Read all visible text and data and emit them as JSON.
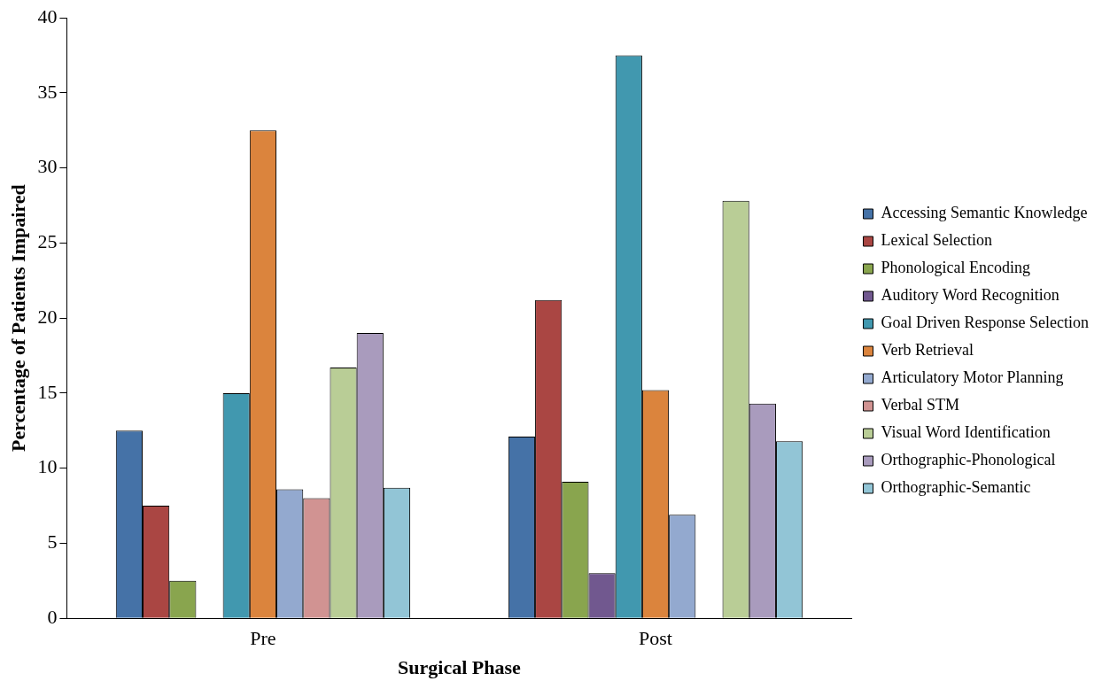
{
  "chart_data": {
    "type": "bar",
    "xlabel": "Surgical Phase",
    "ylabel": "Percentage of Patients Impaired",
    "categories": [
      "Pre",
      "Post"
    ],
    "series": [
      {
        "name": "Accessing Semantic Knowledge",
        "color": "#4572a7",
        "values": [
          12.5,
          12.1
        ]
      },
      {
        "name": "Lexical Selection",
        "color": "#aa4643",
        "values": [
          7.5,
          21.2
        ]
      },
      {
        "name": "Phonological Encoding",
        "color": "#89a54e",
        "values": [
          2.5,
          9.1
        ]
      },
      {
        "name": "Auditory Word Recognition",
        "color": "#71588f",
        "values": [
          0,
          3.0
        ]
      },
      {
        "name": "Goal Driven Response Selection",
        "color": "#4198af",
        "values": [
          15,
          37.5
        ]
      },
      {
        "name": "Verb Retrieval",
        "color": "#db843d",
        "values": [
          32.5,
          15.2
        ]
      },
      {
        "name": "Articulatory Motor Planning",
        "color": "#93a9cf",
        "values": [
          8.6,
          6.9
        ]
      },
      {
        "name": "Verbal STM",
        "color": "#d19392",
        "values": [
          8.0,
          0
        ]
      },
      {
        "name": "Visual Word Identification",
        "color": "#b9cd96",
        "values": [
          16.7,
          27.8
        ]
      },
      {
        "name": "Orthographic-Phonological",
        "color": "#a99bbd",
        "values": [
          19.0,
          14.3
        ]
      },
      {
        "name": "Orthographic-Semantic",
        "color": "#92c5d6",
        "values": [
          8.7,
          11.8
        ]
      }
    ],
    "ylim": [
      0,
      40
    ],
    "yticks": [
      0,
      5,
      10,
      15,
      20,
      25,
      30,
      35,
      40
    ],
    "grid": false,
    "legend": "right"
  }
}
